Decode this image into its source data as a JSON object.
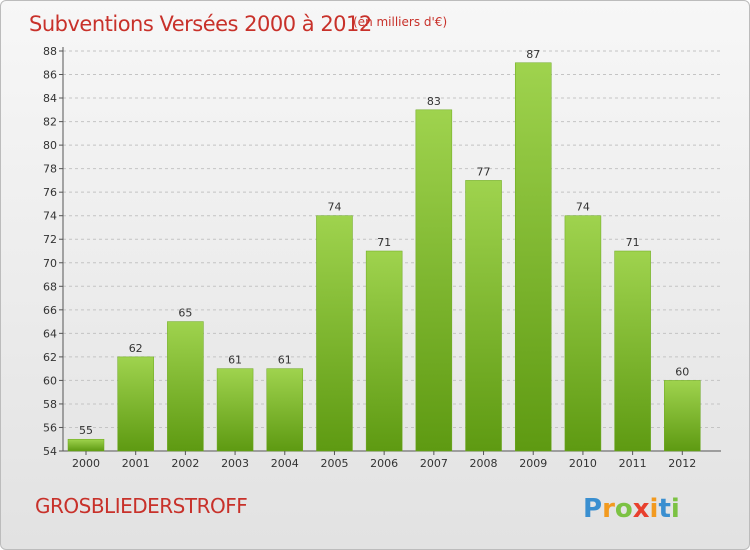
{
  "chart_data": {
    "type": "bar",
    "title": "Subventions Versées 2000 à 2012",
    "subtitle": "(en milliers d'€)",
    "categories": [
      "2000",
      "2001",
      "2002",
      "2003",
      "2004",
      "2005",
      "2006",
      "2007",
      "2008",
      "2009",
      "2010",
      "2011",
      "2012"
    ],
    "values": [
      55,
      62,
      65,
      61,
      61,
      74,
      71,
      83,
      77,
      87,
      74,
      71,
      60
    ],
    "ylim": [
      54,
      88
    ],
    "yticks": [
      54,
      56,
      58,
      60,
      62,
      64,
      66,
      68,
      70,
      72,
      74,
      76,
      78,
      80,
      82,
      84,
      86,
      88
    ],
    "grid": "horizontal dashed",
    "bar_color_top": "#9fd34e",
    "bar_color_bottom": "#5e9a12"
  },
  "footer": {
    "commune": "GROSBLIEDERSTROFF",
    "logo_letters": [
      "P",
      "r",
      "o",
      "x",
      "i",
      "t",
      "i"
    ],
    "logo_colors": [
      "#3a8fd0",
      "#f29a1f",
      "#7cc243",
      "#e8402e",
      "#f29a1f",
      "#3a8fd0",
      "#7cc243"
    ]
  }
}
